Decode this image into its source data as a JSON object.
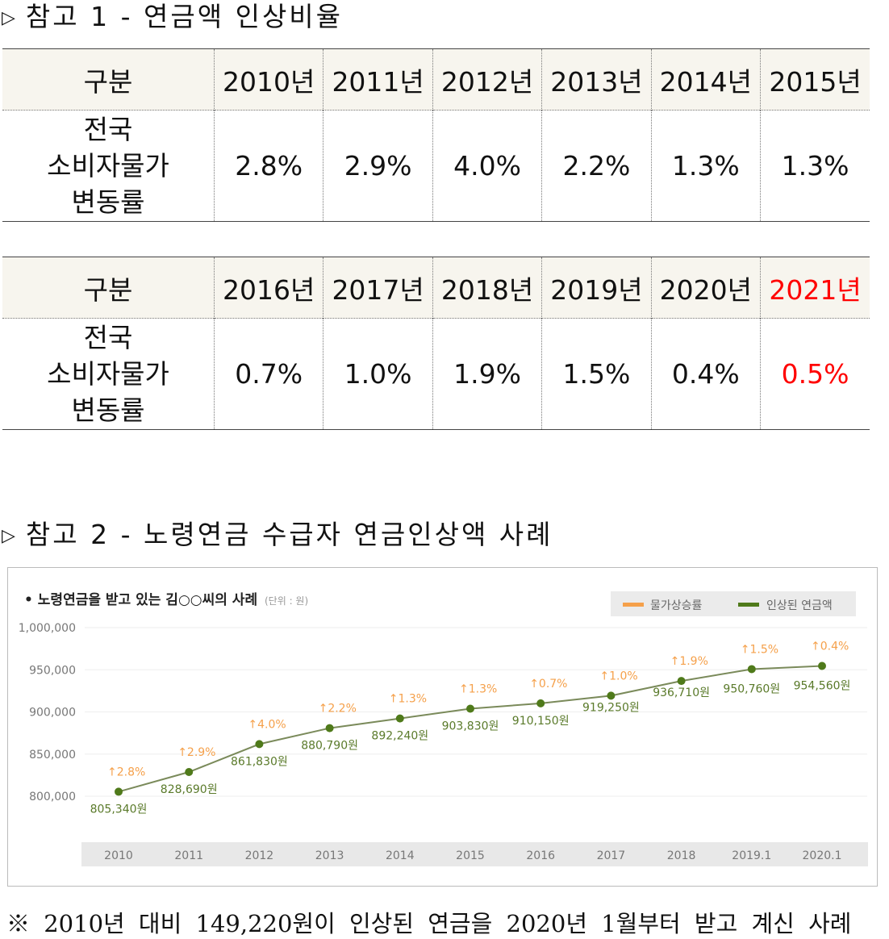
{
  "section1": {
    "marker": "▷",
    "title": "참고 1 - 연금액 인상비율"
  },
  "table1": {
    "header": [
      "구분",
      "2010년",
      "2011년",
      "2012년",
      "2013년",
      "2014년",
      "2015년"
    ],
    "row_label": [
      "전국",
      "소비자물가",
      "변동률"
    ],
    "values": [
      "2.8%",
      "2.9%",
      "4.0%",
      "2.2%",
      "1.3%",
      "1.3%"
    ]
  },
  "table2": {
    "header": [
      "구분",
      "2016년",
      "2017년",
      "2018년",
      "2019년",
      "2020년",
      "2021년"
    ],
    "row_label": [
      "전국",
      "소비자물가",
      "변동률"
    ],
    "values": [
      "0.7%",
      "1.0%",
      "1.9%",
      "1.5%",
      "0.4%",
      "0.5%"
    ],
    "highlight_color": "#ff0000"
  },
  "section2": {
    "marker": "▷",
    "title": "참고 2 - 노령연금 수급자 연금인상액 사례"
  },
  "chart_data": {
    "type": "line",
    "title": "• 노령연금을 받고 있는 김○○씨의 사례",
    "unit": "(단위 : 원)",
    "categories": [
      "2010",
      "2011",
      "2012",
      "2013",
      "2014",
      "2015",
      "2016",
      "2017",
      "2018",
      "2019.1",
      "2020.1"
    ],
    "series": [
      {
        "name": "인상된 연금액",
        "color": "#4f7a1a",
        "values": [
          805340,
          828690,
          861830,
          880790,
          892240,
          903830,
          910150,
          919250,
          936710,
          950760,
          954560
        ],
        "labels": [
          "805,340원",
          "828,690원",
          "861,830원",
          "880,790원",
          "892,240원",
          "903,830원",
          "910,150원",
          "919,250원",
          "936,710원",
          "950,760원",
          "954,560원"
        ]
      },
      {
        "name": "물가상승률",
        "color": "#f5a04a",
        "values": [
          2.8,
          2.9,
          4.0,
          2.2,
          1.3,
          1.3,
          0.7,
          1.0,
          1.9,
          1.5,
          0.4
        ],
        "labels": [
          "2.8%",
          "2.9%",
          "4.0%",
          "2.2%",
          "1.3%",
          "1.3%",
          "0.7%",
          "1.0%",
          "1.9%",
          "1.5%",
          "0.4%"
        ]
      }
    ],
    "yticks": [
      "1,000,000",
      "950,000",
      "900,000",
      "850,000",
      "800,000"
    ],
    "ylim": [
      800000,
      1000000
    ],
    "grid": true,
    "legend": "top-right"
  },
  "footnote": "※ 2010년 대비 149,220원이 인상된 연금을 2020년 1월부터 받고 계신 사례"
}
